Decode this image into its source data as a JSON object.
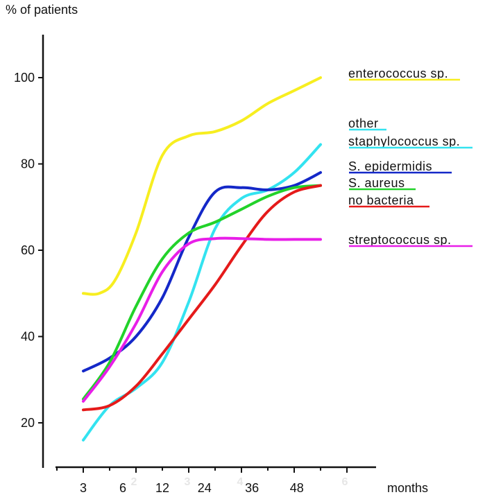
{
  "chart_data": {
    "type": "line",
    "ylabel": "% of patients",
    "xlabel": "months",
    "ylim": [
      10,
      110
    ],
    "y_ticks": [
      20,
      40,
      60,
      80,
      100
    ],
    "x_tick_positions": [
      3,
      6,
      12,
      24,
      36,
      48
    ],
    "x_tick_labels": [
      "3",
      "6",
      "12",
      "24",
      "36",
      "48"
    ],
    "x_range": [
      0.95,
      6.1
    ],
    "faint_labels": [
      {
        "pos": 2,
        "text": "2"
      },
      {
        "pos": 3,
        "text": "3"
      },
      {
        "pos": 4,
        "text": "4"
      },
      {
        "pos": 6,
        "text": "6"
      }
    ],
    "series": [
      {
        "name": "enterococcus sp.",
        "color": "#f7ee20",
        "points": [
          [
            1.0,
            50
          ],
          [
            1.3,
            50
          ],
          [
            1.6,
            53
          ],
          [
            2.0,
            64
          ],
          [
            2.5,
            82
          ],
          [
            3.0,
            86.5
          ],
          [
            3.5,
            87.5
          ],
          [
            4.0,
            90
          ],
          [
            4.5,
            94
          ],
          [
            5.0,
            97
          ],
          [
            5.5,
            100
          ]
        ]
      },
      {
        "name": "other staphylococcus sp.",
        "color": "#33e3f0",
        "points": [
          [
            1.0,
            16
          ],
          [
            1.5,
            24
          ],
          [
            2.0,
            28
          ],
          [
            2.5,
            34
          ],
          [
            3.0,
            48
          ],
          [
            3.5,
            65
          ],
          [
            4.0,
            72
          ],
          [
            4.5,
            74
          ],
          [
            5.0,
            78
          ],
          [
            5.5,
            84.5
          ]
        ]
      },
      {
        "name": "S. epidermidis",
        "color": "#1428c8",
        "points": [
          [
            1.0,
            32
          ],
          [
            1.5,
            35
          ],
          [
            2.0,
            40
          ],
          [
            2.5,
            49
          ],
          [
            3.0,
            63
          ],
          [
            3.5,
            73.5
          ],
          [
            4.0,
            74.5
          ],
          [
            4.5,
            74
          ],
          [
            5.0,
            75
          ],
          [
            5.5,
            78
          ]
        ]
      },
      {
        "name": "S. aureus",
        "color": "#22d22a",
        "points": [
          [
            1.0,
            25.5
          ],
          [
            1.5,
            34
          ],
          [
            2.0,
            47
          ],
          [
            2.5,
            58
          ],
          [
            3.0,
            64
          ],
          [
            3.5,
            66.5
          ],
          [
            4.0,
            69.5
          ],
          [
            4.5,
            72.5
          ],
          [
            5.0,
            74.5
          ],
          [
            5.5,
            75
          ]
        ]
      },
      {
        "name": "no bacteria",
        "color": "#e51a1a",
        "points": [
          [
            1.0,
            23
          ],
          [
            1.5,
            24
          ],
          [
            2.0,
            28.5
          ],
          [
            2.5,
            36
          ],
          [
            3.0,
            44
          ],
          [
            3.5,
            52
          ],
          [
            4.0,
            61
          ],
          [
            4.5,
            69
          ],
          [
            5.0,
            73.5
          ],
          [
            5.5,
            75
          ]
        ]
      },
      {
        "name": "streptococcus sp.",
        "color": "#e81ee8",
        "points": [
          [
            1.0,
            25
          ],
          [
            1.5,
            33
          ],
          [
            2.0,
            43
          ],
          [
            2.5,
            55
          ],
          [
            3.0,
            61.5
          ],
          [
            3.5,
            62.7
          ],
          [
            4.0,
            62.7
          ],
          [
            4.5,
            62.5
          ],
          [
            5.0,
            62.5
          ],
          [
            5.5,
            62.5
          ]
        ]
      }
    ],
    "legend": [
      {
        "lines": [
          "enterococcus sp."
        ],
        "color": "#f7ee20"
      },
      {
        "lines": [
          "other",
          "staphylococcus sp."
        ],
        "color": "#33e3f0"
      },
      {
        "lines": [
          "S. epidermidis"
        ],
        "color": "#1428c8"
      },
      {
        "lines": [
          "S. aureus"
        ],
        "color": "#22d22a"
      },
      {
        "lines": [
          "no bacteria"
        ],
        "color": "#e51a1a"
      },
      {
        "lines": [
          "streptococcus sp."
        ],
        "color": "#e81ee8"
      }
    ]
  }
}
